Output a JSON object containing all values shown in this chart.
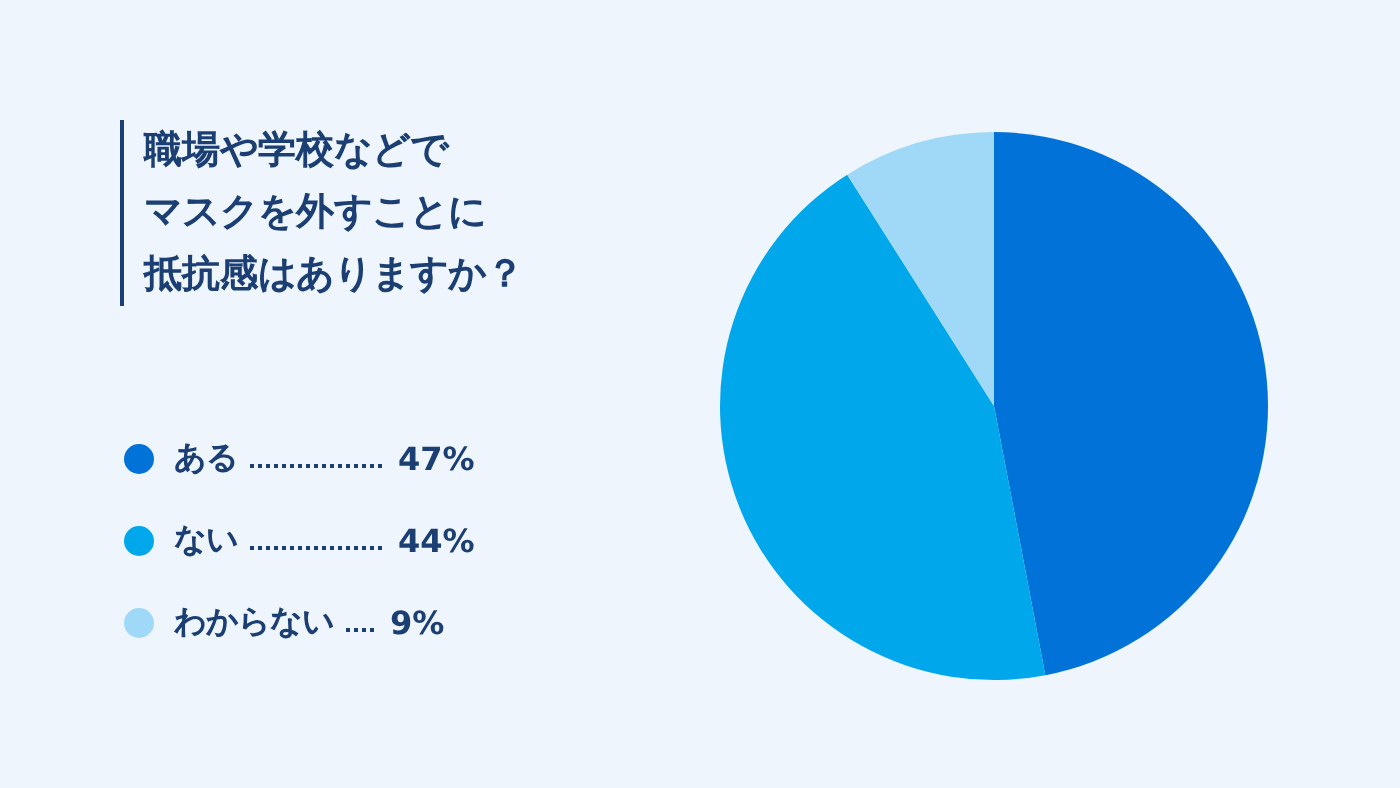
{
  "chart_data": {
    "type": "pie",
    "title": "職場や学校などでマスクを外すことに抵抗感はありますか？",
    "categories": [
      "ある",
      "ない",
      "わからない"
    ],
    "values": [
      47,
      44,
      9
    ],
    "value_labels": [
      "47%",
      "44%",
      "9%"
    ],
    "colors": [
      "#0072d8",
      "#00a8eb",
      "#a0d9f8"
    ],
    "legend": "left"
  }
}
